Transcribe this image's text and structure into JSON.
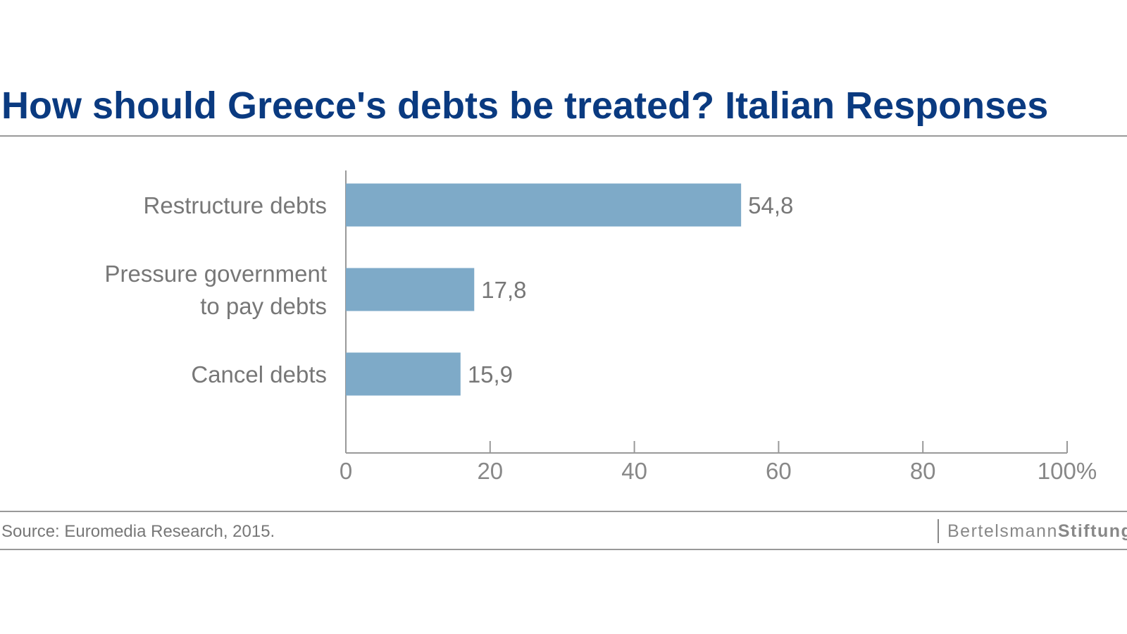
{
  "chart_data": {
    "type": "bar",
    "orientation": "horizontal",
    "title": "How should Greece's debts be treated? Italian Responses",
    "categories": [
      [
        "Restructure debts"
      ],
      [
        "Pressure government",
        "to pay debts"
      ],
      [
        "Cancel debts"
      ]
    ],
    "values": [
      54.8,
      17.8,
      15.9
    ],
    "value_labels": [
      "54,8",
      "17,8",
      "15,9"
    ],
    "xlim": [
      0,
      100
    ],
    "xticks": [
      0,
      20,
      40,
      60,
      80,
      100
    ],
    "xtick_labels": [
      "0",
      "20",
      "40",
      "60",
      "80",
      "100%"
    ],
    "xlabel": "",
    "ylabel": "",
    "grid": false,
    "bar_color": "#7eaac8"
  },
  "footer": {
    "source": "Source: Euromedia Research, 2015.",
    "logo_part1": "Bertelsmann",
    "logo_part2": "Stiftung"
  }
}
